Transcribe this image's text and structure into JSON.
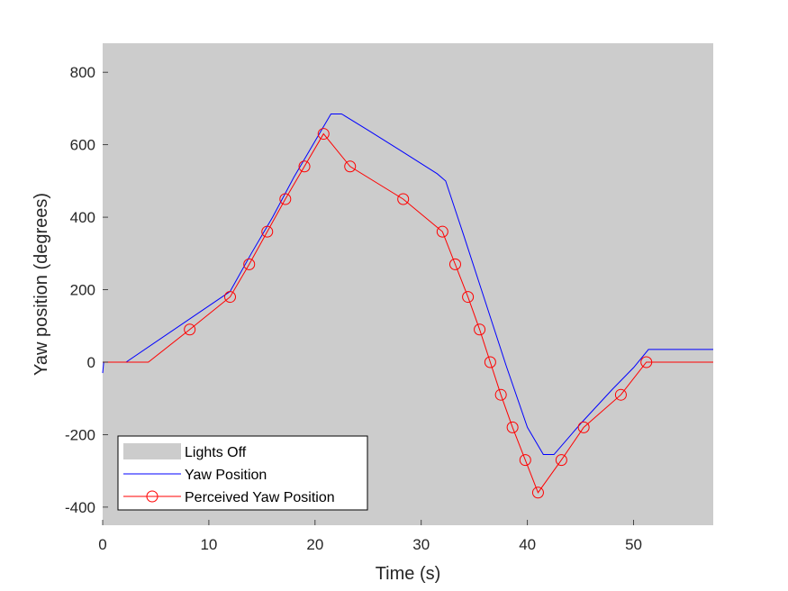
{
  "chart_data": {
    "type": "line",
    "title": "",
    "xlabel": "Time (s)",
    "ylabel": "Yaw position (degrees)",
    "xlim": [
      0,
      57.5
    ],
    "ylim": [
      -450,
      880
    ],
    "xticks": [
      0,
      10,
      20,
      30,
      40,
      50
    ],
    "yticks": [
      -400,
      -200,
      0,
      200,
      400,
      600,
      800
    ],
    "xtick_labels": [
      "0",
      "10",
      "20",
      "30",
      "40",
      "50"
    ],
    "ytick_labels": [
      "-400",
      "-200",
      "0",
      "200",
      "400",
      "600",
      "800"
    ],
    "grid": false,
    "legend_position": "bottom-left",
    "background_shading": {
      "name": "Lights Off",
      "color": "#cccccc",
      "x_range": [
        0,
        57.5
      ]
    },
    "series": [
      {
        "name": "Yaw Position",
        "color": "#0000ff",
        "marker": "none",
        "x": [
          0,
          0.1,
          2.2,
          12,
          14,
          16,
          18,
          20,
          21.5,
          22.5,
          25,
          28,
          31.5,
          32.3,
          34,
          36,
          38,
          40,
          41.5,
          42.5,
          45,
          48,
          50,
          51.4,
          57.5
        ],
        "y": [
          -30,
          0,
          0,
          195,
          300,
          400,
          510,
          610,
          685,
          685,
          640,
          585,
          520,
          500,
          350,
          170,
          -10,
          -180,
          -255,
          -255,
          -170,
          -75,
          -15,
          35,
          35
        ]
      },
      {
        "name": "Perceived Yaw Position",
        "color": "#ff0000",
        "marker": "circle",
        "x": [
          0,
          4.3,
          8.2,
          12,
          13.8,
          15.5,
          17.2,
          19,
          20.8,
          23.3,
          28.3,
          32,
          33.2,
          34.4,
          35.5,
          36.5,
          37.5,
          38.6,
          39.8,
          41,
          43.2,
          45.3,
          48.8,
          51.2,
          57.5
        ],
        "y": [
          0,
          0,
          90,
          180,
          270,
          360,
          450,
          540,
          630,
          540,
          450,
          360,
          270,
          180,
          90,
          0,
          -90,
          -180,
          -270,
          -360,
          -270,
          -180,
          -90,
          0,
          0
        ],
        "marker_indices": [
          2,
          3,
          4,
          5,
          6,
          7,
          8,
          9,
          10,
          11,
          12,
          13,
          14,
          15,
          16,
          17,
          18,
          19,
          20,
          21,
          22,
          23
        ]
      }
    ]
  }
}
